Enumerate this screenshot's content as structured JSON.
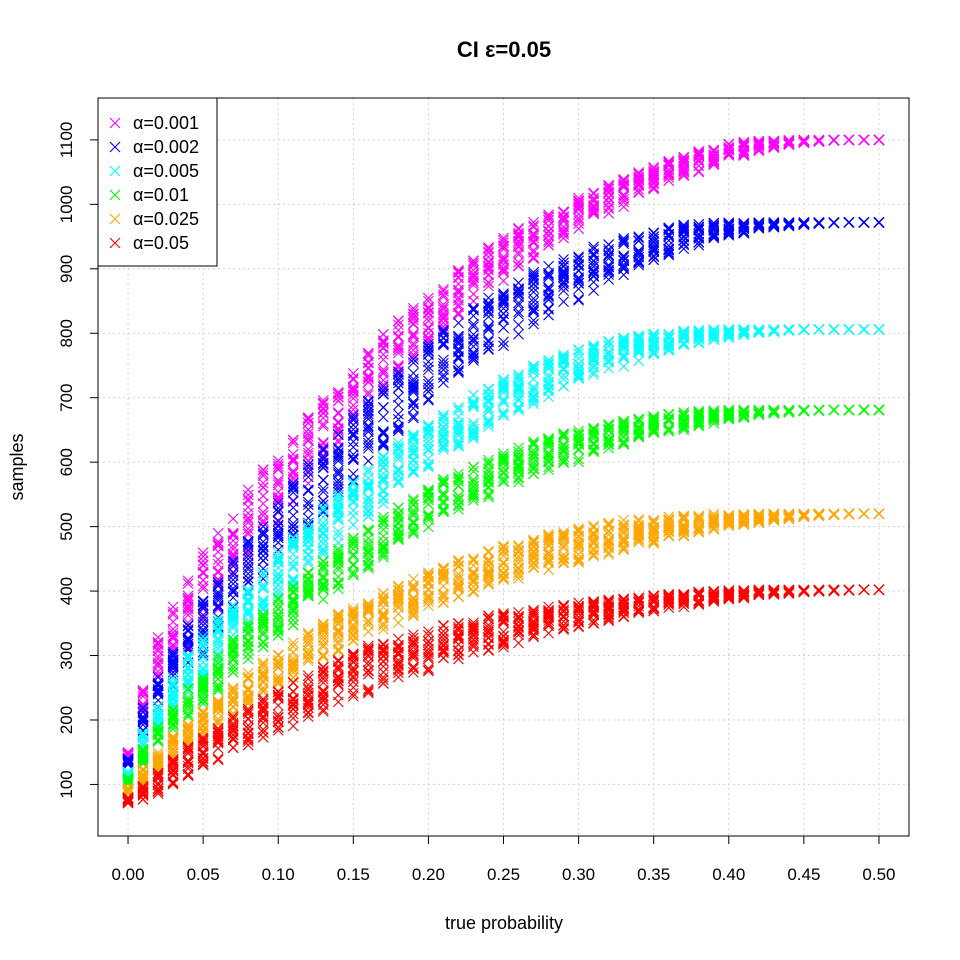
{
  "chart_data": {
    "type": "scatter",
    "title": "CI ε=0.05",
    "xlabel": "true probability",
    "ylabel": "samples",
    "xlim": [
      -0.02,
      0.52
    ],
    "ylim": [
      20,
      1165
    ],
    "x_ticks": [
      0.0,
      0.05,
      0.1,
      0.15,
      0.2,
      0.25,
      0.3,
      0.35,
      0.4,
      0.45,
      0.5
    ],
    "x_tick_labels": [
      "0.00",
      "0.05",
      "0.10",
      "0.15",
      "0.20",
      "0.25",
      "0.30",
      "0.35",
      "0.40",
      "0.45",
      "0.50"
    ],
    "y_ticks": [
      100,
      200,
      300,
      400,
      500,
      600,
      700,
      800,
      900,
      1000,
      1100
    ],
    "y_tick_labels": [
      "100",
      "200",
      "300",
      "400",
      "500",
      "600",
      "700",
      "800",
      "900",
      "1000",
      "1100"
    ],
    "grid": true,
    "marker": "x",
    "legend_position": "top-left",
    "x": [
      0.0,
      0.01,
      0.02,
      0.03,
      0.04,
      0.05,
      0.06,
      0.07,
      0.08,
      0.09,
      0.1,
      0.11,
      0.12,
      0.13,
      0.14,
      0.15,
      0.16,
      0.17,
      0.18,
      0.19,
      0.2,
      0.21,
      0.22,
      0.23,
      0.24,
      0.25,
      0.26,
      0.27,
      0.28,
      0.29,
      0.3,
      0.31,
      0.32,
      0.33,
      0.34,
      0.35,
      0.36,
      0.37,
      0.38,
      0.39,
      0.4,
      0.41,
      0.42,
      0.43,
      0.44,
      0.45,
      0.46,
      0.47,
      0.48,
      0.49,
      0.5
    ],
    "series": [
      {
        "name": "α=0.001",
        "color": "#ff00ff",
        "range_low": [
          135,
          190,
          240,
          280,
          310,
          340,
          370,
          405,
          440,
          470,
          500,
          530,
          560,
          590,
          620,
          650,
          680,
          705,
          730,
          755,
          780,
          800,
          820,
          845,
          865,
          880,
          900,
          915,
          930,
          945,
          960,
          975,
          985,
          995,
          1010,
          1020,
          1030,
          1040,
          1050,
          1060,
          1070,
          1075,
          1082,
          1088,
          1092,
          1095,
          1097,
          1099,
          1100,
          1100,
          1100
        ],
        "range_high": [
          150,
          250,
          330,
          380,
          420,
          460,
          490,
          520,
          560,
          590,
          620,
          640,
          670,
          700,
          720,
          745,
          770,
          800,
          820,
          840,
          860,
          880,
          900,
          920,
          935,
          950,
          965,
          975,
          985,
          995,
          1010,
          1020,
          1030,
          1040,
          1050,
          1060,
          1068,
          1075,
          1083,
          1088,
          1095,
          1098,
          1100,
          1100,
          1100,
          1100,
          1100,
          1100,
          1100,
          1100,
          1100
        ]
      },
      {
        "name": "α=0.002",
        "color": "#0000ff",
        "range_low": [
          130,
          170,
          215,
          250,
          280,
          300,
          330,
          355,
          385,
          410,
          435,
          460,
          490,
          520,
          545,
          570,
          595,
          620,
          645,
          665,
          690,
          710,
          725,
          745,
          765,
          780,
          795,
          810,
          825,
          840,
          850,
          865,
          875,
          890,
          900,
          910,
          920,
          930,
          935,
          945,
          950,
          955,
          960,
          963,
          966,
          968,
          970,
          971,
          972,
          972,
          972
        ],
        "range_high": [
          140,
          220,
          270,
          310,
          350,
          390,
          420,
          450,
          480,
          510,
          540,
          570,
          600,
          625,
          650,
          675,
          700,
          725,
          745,
          765,
          785,
          805,
          820,
          840,
          855,
          870,
          885,
          895,
          905,
          915,
          925,
          935,
          940,
          948,
          955,
          960,
          965,
          968,
          970,
          972,
          972,
          972,
          972,
          972,
          972,
          972,
          972,
          972,
          972,
          972,
          972
        ]
      },
      {
        "name": "α=0.005",
        "color": "#00ffff",
        "range_low": [
          110,
          150,
          185,
          215,
          240,
          260,
          285,
          310,
          335,
          360,
          385,
          405,
          430,
          455,
          475,
          495,
          515,
          535,
          555,
          575,
          590,
          605,
          620,
          635,
          650,
          665,
          675,
          690,
          700,
          710,
          720,
          730,
          740,
          748,
          755,
          762,
          770,
          778,
          783,
          788,
          792,
          796,
          800,
          802,
          804,
          805,
          806,
          806,
          806,
          806,
          806
        ],
        "range_high": [
          120,
          180,
          225,
          265,
          300,
          330,
          360,
          385,
          410,
          435,
          460,
          485,
          505,
          530,
          550,
          570,
          590,
          610,
          630,
          645,
          660,
          675,
          690,
          705,
          715,
          730,
          740,
          750,
          760,
          768,
          775,
          782,
          788,
          793,
          797,
          800,
          803,
          805,
          806,
          806,
          806,
          806,
          806,
          806,
          806,
          806,
          806,
          806,
          806,
          806,
          806
        ]
      },
      {
        "name": "α=0.01",
        "color": "#00ff00",
        "range_low": [
          100,
          130,
          160,
          185,
          205,
          225,
          245,
          265,
          285,
          305,
          325,
          345,
          365,
          385,
          400,
          420,
          435,
          450,
          465,
          480,
          495,
          510,
          520,
          535,
          545,
          555,
          565,
          575,
          585,
          595,
          600,
          610,
          618,
          625,
          632,
          640,
          645,
          650,
          655,
          660,
          665,
          668,
          672,
          675,
          677,
          679,
          680,
          681,
          681,
          681,
          681
        ],
        "range_high": [
          110,
          155,
          190,
          220,
          250,
          275,
          300,
          325,
          350,
          370,
          390,
          410,
          430,
          450,
          470,
          485,
          500,
          515,
          530,
          545,
          560,
          575,
          585,
          595,
          605,
          615,
          625,
          632,
          640,
          645,
          650,
          656,
          660,
          665,
          668,
          672,
          675,
          677,
          679,
          680,
          681,
          681,
          681,
          681,
          681,
          681,
          681,
          681,
          681,
          681,
          681
        ]
      },
      {
        "name": "α=0.025",
        "color": "#ffa500",
        "range_low": [
          85,
          100,
          120,
          140,
          160,
          175,
          190,
          205,
          220,
          235,
          250,
          265,
          280,
          295,
          305,
          320,
          330,
          340,
          350,
          360,
          370,
          380,
          388,
          395,
          403,
          410,
          418,
          425,
          432,
          438,
          444,
          450,
          456,
          462,
          468,
          474,
          480,
          485,
          490,
          494,
          498,
          502,
          505,
          508,
          511,
          514,
          516,
          518,
          519,
          520,
          520
        ],
        "range_high": [
          95,
          125,
          150,
          175,
          195,
          215,
          235,
          255,
          275,
          290,
          305,
          320,
          335,
          350,
          365,
          375,
          390,
          400,
          410,
          420,
          430,
          440,
          448,
          455,
          462,
          470,
          476,
          482,
          488,
          493,
          498,
          502,
          506,
          510,
          513,
          515,
          517,
          518,
          519,
          520,
          520,
          520,
          520,
          520,
          520,
          520,
          520,
          520,
          520,
          520,
          520
        ]
      },
      {
        "name": "α=0.05",
        "color": "#ff0000",
        "range_low": [
          70,
          75,
          85,
          100,
          110,
          125,
          135,
          145,
          160,
          170,
          180,
          190,
          200,
          210,
          220,
          230,
          240,
          250,
          260,
          270,
          275,
          285,
          290,
          300,
          305,
          312,
          318,
          325,
          332,
          338,
          343,
          348,
          353,
          358,
          363,
          367,
          371,
          375,
          379,
          383,
          386,
          389,
          392,
          394,
          396,
          398,
          399,
          400,
          401,
          402,
          402
        ],
        "range_high": [
          80,
          100,
          120,
          140,
          160,
          175,
          190,
          205,
          220,
          235,
          245,
          260,
          270,
          285,
          295,
          305,
          315,
          320,
          328,
          335,
          340,
          347,
          352,
          357,
          362,
          366,
          370,
          373,
          376,
          379,
          382,
          385,
          388,
          390,
          392,
          394,
          396,
          397,
          399,
          400,
          401,
          402,
          402,
          402,
          402,
          402,
          402,
          402,
          402,
          402,
          402
        ]
      }
    ]
  }
}
